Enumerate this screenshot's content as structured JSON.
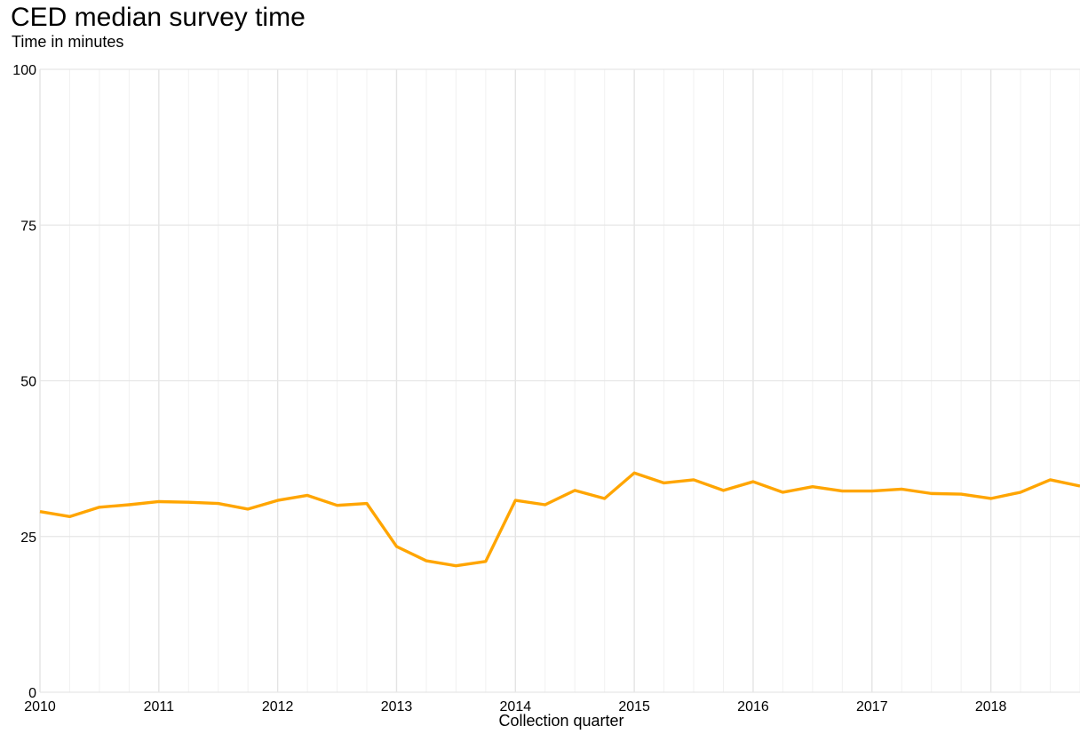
{
  "chart_data": {
    "type": "line",
    "title": "CED median survey time",
    "subtitle": "Time in minutes",
    "xlabel": "Collection quarter",
    "ylabel": "",
    "ylim": [
      0,
      100
    ],
    "xlim": [
      "2010 Q1",
      "2018 Q4"
    ],
    "y_ticks": [
      0,
      25,
      50,
      75,
      100
    ],
    "x_ticks": [
      "2010",
      "2011",
      "2012",
      "2013",
      "2014",
      "2015",
      "2016",
      "2017",
      "2018"
    ],
    "grid": true,
    "legend": "none",
    "series": [
      {
        "color": "#FFA500",
        "x": [
          "2010 Q1",
          "2010 Q2",
          "2010 Q3",
          "2010 Q4",
          "2011 Q1",
          "2011 Q2",
          "2011 Q3",
          "2011 Q4",
          "2012 Q1",
          "2012 Q2",
          "2012 Q3",
          "2012 Q4",
          "2013 Q1",
          "2013 Q2",
          "2013 Q3",
          "2013 Q4",
          "2014 Q1",
          "2014 Q2",
          "2014 Q3",
          "2014 Q4",
          "2015 Q1",
          "2015 Q2",
          "2015 Q3",
          "2015 Q4",
          "2016 Q1",
          "2016 Q2",
          "2016 Q3",
          "2016 Q4",
          "2017 Q1",
          "2017 Q2",
          "2017 Q3",
          "2017 Q4",
          "2018 Q1",
          "2018 Q2",
          "2018 Q3",
          "2018 Q4"
        ],
        "values": [
          29.0,
          28.2,
          29.7,
          30.1,
          30.6,
          30.5,
          30.3,
          29.4,
          30.8,
          31.6,
          30.0,
          30.3,
          23.4,
          21.1,
          20.3,
          21.0,
          30.8,
          30.1,
          32.4,
          31.1,
          35.2,
          33.6,
          34.1,
          32.4,
          33.8,
          32.1,
          33.0,
          32.3,
          32.3,
          32.6,
          31.9,
          31.8,
          31.1,
          32.1,
          34.1,
          33.1
        ]
      }
    ]
  }
}
